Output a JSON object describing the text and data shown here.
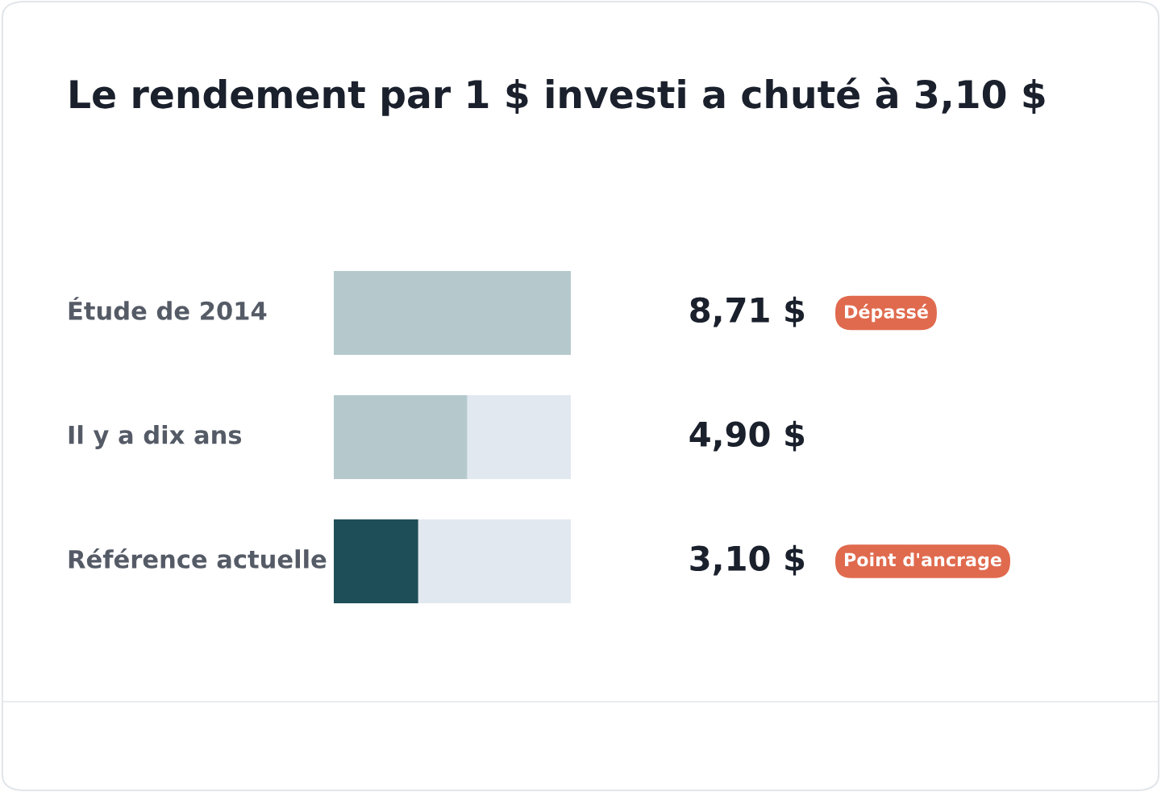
{
  "chart_data": {
    "type": "bar",
    "orientation": "horizontal",
    "title": "Le rendement par 1 $ investi a chuté à 3,10 $",
    "categories": [
      "Étude de 2014",
      "Il y a dix ans",
      "Référence actuelle"
    ],
    "values": [
      8.71,
      4.9,
      3.1
    ],
    "colors": [
      "#b5c9cd",
      "#b5c9cd",
      "#1e4f58"
    ],
    "value_labels": [
      "8,71 $",
      "4,90 $",
      "3,10 $"
    ],
    "annotations": [
      "Dépassé",
      "Point d'ancrage"
    ],
    "legend": false
  }
}
